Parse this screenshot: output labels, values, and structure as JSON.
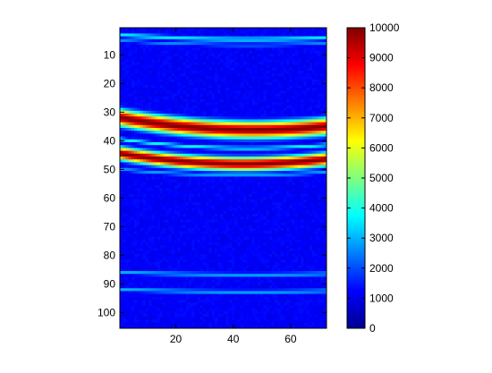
{
  "chart_data": {
    "type": "heatmap",
    "colormap": "jet",
    "grid": false,
    "x_range": [
      1,
      72
    ],
    "y_range": [
      1,
      105
    ],
    "y_axis": "reversed",
    "x_ticks": [
      20,
      40,
      60
    ],
    "y_ticks": [
      10,
      20,
      30,
      40,
      50,
      60,
      70,
      80,
      90,
      100
    ],
    "colorbar": {
      "placement": "right",
      "range": [
        0,
        10000
      ],
      "ticks": [
        0,
        1000,
        2000,
        3000,
        4000,
        5000,
        6000,
        7000,
        8000,
        9000,
        10000
      ]
    },
    "background_level": 1200,
    "bands": [
      {
        "row_at_left": 3,
        "row_at_right": 4,
        "sag": 1.0,
        "width": 1.0,
        "peak": 3600
      },
      {
        "row_at_left": 5,
        "row_at_right": 6,
        "sag": 1.0,
        "width": 0.8,
        "peak": 2600
      },
      {
        "row_at_left": 32,
        "row_at_right": 35,
        "sag": 2.5,
        "width": 3.0,
        "peak": 10000
      },
      {
        "row_at_left": 39.5,
        "row_at_right": 41.5,
        "sag": 2.0,
        "width": 0.8,
        "peak": 3800
      },
      {
        "row_at_left": 44.5,
        "row_at_right": 46.5,
        "sag": 2.5,
        "width": 2.4,
        "peak": 10000
      },
      {
        "row_at_left": 50,
        "row_at_right": 51,
        "sag": 1.5,
        "width": 0.9,
        "peak": 2800
      },
      {
        "row_at_left": 86,
        "row_at_right": 86.5,
        "sag": 0.5,
        "width": 0.9,
        "peak": 3000
      },
      {
        "row_at_left": 92,
        "row_at_right": 92.5,
        "sag": 0.5,
        "width": 0.9,
        "peak": 3000
      }
    ]
  }
}
